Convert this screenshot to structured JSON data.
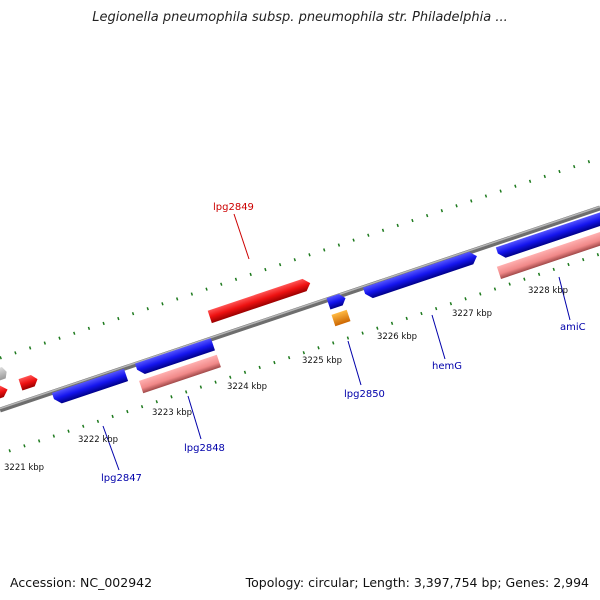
{
  "title": "Legionella pneumophila subsp. pneumophila str. Philadelphia ...",
  "footer": {
    "accession": "Accession: NC_002942",
    "summary": "Topology: circular; Length: 3,397,754 bp; Genes: 2,994"
  },
  "scale_labels": [
    "3221 kbp",
    "3222 kbp",
    "3223 kbp",
    "3224 kbp",
    "3225 kbp",
    "3226 kbp",
    "3227 kbp",
    "3228 kbp"
  ],
  "genes": [
    {
      "name": "lpg2849",
      "color": "#cc0000"
    },
    {
      "name": "lpg2850",
      "color": "#0000aa"
    },
    {
      "name": "hemG",
      "color": "#0000aa"
    },
    {
      "name": "amiC",
      "color": "#0000aa"
    },
    {
      "name": "lpg2848",
      "color": "#0000aa"
    },
    {
      "name": "lpg2847",
      "color": "#0000aa"
    }
  ],
  "colors": {
    "backbone": "#8a8a8a",
    "tick": "#1e7a1e",
    "forward_gene": "#ee1111",
    "reverse_gene": "#1515ee",
    "pseudo_gene": "#f08888",
    "rna_gene": "#ff9900"
  }
}
